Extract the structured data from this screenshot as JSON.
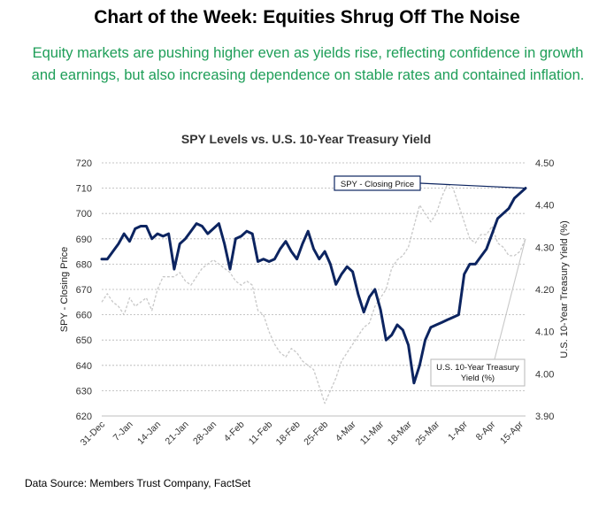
{
  "header": {
    "title": "Chart of the Week: Equities Shrug Off The Noise",
    "subtitle": "Equity markets are pushing higher even as yields rise, reflecting confidence in growth and earnings, but also increasing dependence on stable rates and contained inflation."
  },
  "footer": {
    "source": "Data Source: Members Trust Company, FactSet"
  },
  "colors": {
    "title_text": "#000000",
    "subtitle_text": "#1e9e58",
    "spy_line": "#0c2460",
    "yield_line": "#c8c8c8",
    "grid": "#b4b4b4"
  },
  "chart_data": {
    "type": "line",
    "title": "SPY Levels vs. U.S. 10-Year Treasury Yield",
    "ylabel": "SPY - Closing Price",
    "y2label": "U.S. 10-Year Treasury Yield (%)",
    "ylim": [
      620,
      720
    ],
    "y2lim": [
      3.9,
      4.5
    ],
    "yticks": [
      720,
      710,
      700,
      690,
      680,
      670,
      660,
      650,
      640,
      630,
      620
    ],
    "y2ticks": [
      "4.50",
      "4.40",
      "4.30",
      "4.20",
      "4.10",
      "4.00",
      "3.90"
    ],
    "xlim": [
      0,
      76
    ],
    "xtick_positions": [
      0,
      5,
      10,
      15,
      20,
      25,
      30,
      35,
      40,
      45,
      50,
      55,
      60,
      65,
      70,
      75
    ],
    "xtick_labels": [
      "31-Dec",
      "7-Jan",
      "14-Jan",
      "21-Jan",
      "28-Jan",
      "4-Feb",
      "11-Feb",
      "18-Feb",
      "25-Feb",
      "4-Mar",
      "11-Mar",
      "18-Mar",
      "25-Mar",
      "1-Apr",
      "8-Apr",
      "15-Apr"
    ],
    "grid": true,
    "annotations": [
      {
        "text": "SPY - Closing Price",
        "series": "SPY - Closing Price",
        "point_index": 76
      },
      {
        "text": "U.S. 10-Year Treasury Yield (%)",
        "lines": [
          "U.S. 10-Year Treasury",
          "Yield (%)"
        ],
        "series": "U.S. 10-Year Treasury Yield (%)",
        "point_index": 76
      }
    ],
    "series": [
      {
        "name": "SPY - Closing Price",
        "axis": "left",
        "x": [
          0,
          1,
          2,
          3,
          4,
          5,
          6,
          7,
          8,
          9,
          10,
          11,
          12,
          13,
          14,
          15,
          16,
          17,
          18,
          19,
          20,
          21,
          22,
          23,
          24,
          25,
          26,
          27,
          28,
          29,
          30,
          31,
          32,
          33,
          34,
          35,
          36,
          37,
          38,
          39,
          40,
          41,
          42,
          43,
          44,
          45,
          46,
          47,
          48,
          49,
          50,
          51,
          52,
          53,
          54,
          55,
          56,
          57,
          58,
          59,
          60,
          61,
          62,
          63,
          64,
          65,
          66,
          67,
          68,
          69,
          70,
          71,
          72,
          73,
          74,
          75,
          76
        ],
        "values": [
          682,
          682,
          685,
          688,
          692,
          689,
          694,
          695,
          695,
          690,
          692,
          691,
          692,
          678,
          688,
          690,
          693,
          696,
          695,
          692,
          694,
          696,
          688,
          678,
          690,
          691,
          693,
          692,
          681,
          682,
          681,
          682,
          686,
          689,
          685,
          682,
          688,
          693,
          686,
          682,
          685,
          680,
          672,
          676,
          679,
          677,
          668,
          661,
          667,
          670,
          662,
          650,
          652,
          656,
          654,
          648,
          633,
          640,
          650,
          655,
          656,
          657,
          658,
          659,
          660,
          676,
          680,
          680,
          683,
          686,
          692,
          698,
          700,
          702,
          706,
          708,
          710
        ]
      },
      {
        "name": "U.S. 10-Year Treasury Yield (%)",
        "axis": "right",
        "x": [
          0,
          1,
          2,
          3,
          4,
          5,
          6,
          7,
          8,
          9,
          10,
          11,
          12,
          13,
          14,
          15,
          16,
          17,
          18,
          19,
          20,
          21,
          22,
          23,
          24,
          25,
          26,
          27,
          28,
          29,
          30,
          31,
          32,
          33,
          34,
          35,
          36,
          37,
          38,
          39,
          40,
          41,
          42,
          43,
          44,
          45,
          46,
          47,
          48,
          49,
          50,
          51,
          52,
          53,
          54,
          55,
          56,
          57,
          58,
          59,
          60,
          61,
          62,
          63,
          64,
          65,
          66,
          67,
          68,
          69,
          70,
          71,
          72,
          73,
          74,
          75,
          76
        ],
        "values": [
          4.17,
          4.19,
          4.17,
          4.16,
          4.14,
          4.18,
          4.16,
          4.17,
          4.18,
          4.15,
          4.2,
          4.23,
          4.23,
          4.23,
          4.24,
          4.22,
          4.21,
          4.23,
          4.25,
          4.26,
          4.27,
          4.26,
          4.25,
          4.24,
          4.22,
          4.21,
          4.22,
          4.21,
          4.15,
          4.14,
          4.1,
          4.07,
          4.05,
          4.04,
          4.06,
          4.05,
          4.03,
          4.02,
          4.01,
          3.97,
          3.93,
          3.96,
          3.99,
          4.03,
          4.05,
          4.07,
          4.09,
          4.11,
          4.12,
          4.16,
          4.18,
          4.2,
          4.25,
          4.27,
          4.28,
          4.3,
          4.35,
          4.4,
          4.38,
          4.36,
          4.38,
          4.42,
          4.45,
          4.44,
          4.4,
          4.36,
          4.32,
          4.31,
          4.33,
          4.33,
          4.35,
          4.31,
          4.3,
          4.28,
          4.28,
          4.29,
          4.32
        ]
      }
    ]
  }
}
